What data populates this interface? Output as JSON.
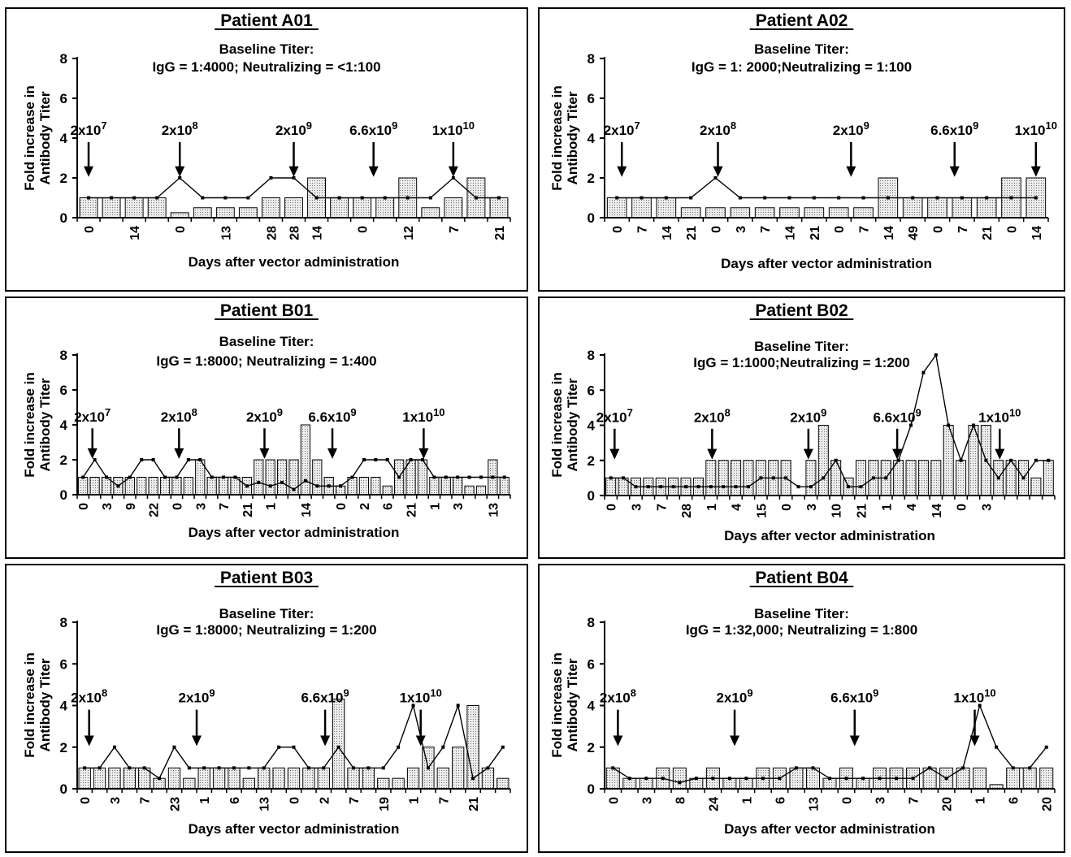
{
  "chart_data": [
    {
      "type": "bar",
      "title": "Patient A01",
      "subtitle": "Baseline Titer:",
      "subtitle2": "IgG = 1:4000; Neutralizing = <1:100",
      "ylabel": "Fold increase in Antibody Titer",
      "xlabel": "Days after vector administration",
      "ylim": [
        0,
        8
      ],
      "yticks": [
        0,
        2,
        4,
        6,
        8
      ],
      "tick_labels": [
        {
          "i": 0,
          "label": "0"
        },
        {
          "i": 2,
          "label": "14"
        },
        {
          "i": 4,
          "label": "0"
        },
        {
          "i": 6,
          "label": "13"
        },
        {
          "i": 8,
          "label": "28"
        },
        {
          "i": 9,
          "label": "28"
        },
        {
          "i": 10,
          "label": "14"
        },
        {
          "i": 12,
          "label": "0"
        },
        {
          "i": 14,
          "label": "12"
        },
        {
          "i": 16,
          "label": "7"
        },
        {
          "i": 18,
          "label": "21"
        }
      ],
      "bars": [
        1,
        1,
        1,
        1,
        0.25,
        0.5,
        0.5,
        0.5,
        1,
        1,
        2,
        1,
        1,
        1,
        2,
        0.5,
        1,
        2,
        1
      ],
      "line": [
        1,
        1,
        1,
        1,
        2,
        1,
        1,
        1,
        2,
        2,
        1,
        1,
        1,
        1,
        1,
        1,
        2,
        1,
        1
      ],
      "doses": [
        {
          "at": 0.5,
          "base": "2x10",
          "exp": "7"
        },
        {
          "at": 4.5,
          "base": "2x10",
          "exp": "8"
        },
        {
          "at": 9.5,
          "base": "2x10",
          "exp": "9"
        },
        {
          "at": 13.0,
          "base": "6.6x10",
          "exp": "9"
        },
        {
          "at": 16.5,
          "base": "1x10",
          "exp": "10"
        }
      ]
    },
    {
      "type": "bar",
      "title": "Patient A02",
      "subtitle": "Baseline Titer:",
      "subtitle2": "IgG = 1: 2000;Neutralizing = 1:100",
      "ylabel": "Fold increase in Antibody Titer",
      "xlabel": "Days after vector administration",
      "ylim": [
        0,
        8
      ],
      "yticks": [
        0,
        2,
        4,
        6,
        8
      ],
      "tick_labels": [
        {
          "i": 0,
          "label": "0"
        },
        {
          "i": 1,
          "label": "7"
        },
        {
          "i": 2,
          "label": "14"
        },
        {
          "i": 3,
          "label": "21"
        },
        {
          "i": 4,
          "label": "0"
        },
        {
          "i": 5,
          "label": "3"
        },
        {
          "i": 6,
          "label": "7"
        },
        {
          "i": 7,
          "label": "14"
        },
        {
          "i": 8,
          "label": "21"
        },
        {
          "i": 9,
          "label": "0"
        },
        {
          "i": 10,
          "label": "7"
        },
        {
          "i": 11,
          "label": "14"
        },
        {
          "i": 12,
          "label": "49"
        },
        {
          "i": 13,
          "label": "0"
        },
        {
          "i": 14,
          "label": "7"
        },
        {
          "i": 15,
          "label": "21"
        },
        {
          "i": 16,
          "label": "0"
        },
        {
          "i": 17,
          "label": "14"
        }
      ],
      "bars": [
        1,
        1,
        1,
        0.5,
        0.5,
        0.5,
        0.5,
        0.5,
        0.5,
        0.5,
        0.5,
        2,
        1,
        1,
        1,
        1,
        2,
        2
      ],
      "line": [
        1,
        1,
        1,
        1,
        2,
        1,
        1,
        1,
        1,
        1,
        1,
        1,
        1,
        1,
        1,
        1,
        1,
        1
      ],
      "doses": [
        {
          "at": 0.7,
          "base": "2x10",
          "exp": "7"
        },
        {
          "at": 4.6,
          "base": "2x10",
          "exp": "8"
        },
        {
          "at": 10.0,
          "base": "2x10",
          "exp": "9"
        },
        {
          "at": 14.2,
          "base": "6.6x10",
          "exp": "9"
        },
        {
          "at": 17.5,
          "base": "1x10",
          "exp": "10"
        }
      ]
    },
    {
      "type": "bar",
      "title": "Patient B01",
      "subtitle": "Baseline Titer:",
      "subtitle2": "IgG = 1:8000; Neutralizing = 1:400",
      "ylabel": "Fold increase in Antibody Titer",
      "xlabel": "Days after vector administration",
      "ylim": [
        0,
        8
      ],
      "yticks": [
        0,
        2,
        4,
        6,
        8
      ],
      "tick_labels": [
        {
          "i": 0,
          "label": "0"
        },
        {
          "i": 2,
          "label": "3"
        },
        {
          "i": 4,
          "label": "9"
        },
        {
          "i": 6,
          "label": "22"
        },
        {
          "i": 8,
          "label": "0"
        },
        {
          "i": 10,
          "label": "3"
        },
        {
          "i": 12,
          "label": "7"
        },
        {
          "i": 14,
          "label": "21"
        },
        {
          "i": 16,
          "label": "1"
        },
        {
          "i": 19,
          "label": "14"
        },
        {
          "i": 22,
          "label": "0"
        },
        {
          "i": 24,
          "label": "2"
        },
        {
          "i": 26,
          "label": "6"
        },
        {
          "i": 28,
          "label": "21"
        },
        {
          "i": 30,
          "label": "1"
        },
        {
          "i": 32,
          "label": "3"
        },
        {
          "i": 35,
          "label": "13"
        }
      ],
      "bars": [
        1,
        1,
        1,
        1,
        1,
        1,
        1,
        1,
        1,
        1,
        2,
        1,
        1,
        1,
        1,
        2,
        2,
        2,
        2,
        4,
        2,
        1,
        0.5,
        1,
        1,
        1,
        0.5,
        2,
        2,
        2,
        1,
        1,
        1,
        0.5,
        0.5,
        2,
        1
      ],
      "line": [
        1,
        2,
        1,
        0.5,
        1,
        2,
        2,
        1,
        1,
        2,
        2,
        1,
        1,
        1,
        0.5,
        0.7,
        0.5,
        0.7,
        0.3,
        0.8,
        0.5,
        0.5,
        0.5,
        1,
        2,
        2,
        2,
        1,
        2,
        2,
        1,
        1,
        1,
        1,
        1,
        1,
        1
      ],
      "doses": [
        {
          "at": 1.3,
          "base": "2x10",
          "exp": "7"
        },
        {
          "at": 8.7,
          "base": "2x10",
          "exp": "8"
        },
        {
          "at": 16.0,
          "base": "2x10",
          "exp": "9"
        },
        {
          "at": 21.8,
          "base": "6.6x10",
          "exp": "9"
        },
        {
          "at": 29.6,
          "base": "1x10",
          "exp": "10"
        }
      ]
    },
    {
      "type": "bar",
      "title": "Patient B02",
      "subtitle": "Baseline Titer:",
      "subtitle2": "IgG = 1:1000;Neutralizing = 1:200",
      "ylabel": "Fold increase in Antibody Titer",
      "xlabel": "Days after vector administration",
      "ylim": [
        0,
        8
      ],
      "yticks": [
        0,
        2,
        4,
        6,
        8
      ],
      "tick_labels": [
        {
          "i": 0,
          "label": "0"
        },
        {
          "i": 2,
          "label": "3"
        },
        {
          "i": 4,
          "label": "7"
        },
        {
          "i": 6,
          "label": "28"
        },
        {
          "i": 8,
          "label": "1"
        },
        {
          "i": 10,
          "label": "4"
        },
        {
          "i": 12,
          "label": "15"
        },
        {
          "i": 14,
          "label": "0"
        },
        {
          "i": 16,
          "label": "3"
        },
        {
          "i": 18,
          "label": "10"
        },
        {
          "i": 20,
          "label": "21"
        },
        {
          "i": 22,
          "label": "1"
        },
        {
          "i": 24,
          "label": "4"
        },
        {
          "i": 26,
          "label": "14"
        },
        {
          "i": 28,
          "label": "0"
        },
        {
          "i": 30,
          "label": "3"
        }
      ],
      "bars": [
        1,
        1,
        1,
        1,
        1,
        1,
        1,
        1,
        2,
        2,
        2,
        2,
        2,
        2,
        2,
        0,
        2,
        4,
        2,
        1,
        2,
        2,
        2,
        2,
        2,
        2,
        2,
        4,
        2,
        4,
        4,
        2,
        2,
        2,
        1,
        2
      ],
      "line": [
        1,
        1,
        0.5,
        0.5,
        0.5,
        0.5,
        0.5,
        0.5,
        0.5,
        0.5,
        0.5,
        0.5,
        1,
        1,
        1,
        0.5,
        0.5,
        1,
        2,
        0.5,
        0.5,
        1,
        1,
        2,
        4,
        7,
        8,
        4,
        2,
        4,
        2,
        1,
        2,
        1,
        2,
        2
      ],
      "doses": [
        {
          "at": 0.8,
          "base": "2x10",
          "exp": "7"
        },
        {
          "at": 8.6,
          "base": "2x10",
          "exp": "8"
        },
        {
          "at": 16.3,
          "base": "2x10",
          "exp": "9"
        },
        {
          "at": 23.4,
          "base": "6.6x10",
          "exp": "9"
        },
        {
          "at": 31.6,
          "base": "1x10",
          "exp": "10"
        }
      ]
    },
    {
      "type": "bar",
      "title": "Patient B03",
      "subtitle": "Baseline Titer:",
      "subtitle2": "IgG = 1:8000; Neutralizing = 1:200",
      "ylabel": "Fold increase in Antibody Titer",
      "xlabel": "Days after vector administration",
      "ylim": [
        0,
        8
      ],
      "yticks": [
        0,
        2,
        4,
        6,
        8
      ],
      "tick_labels": [
        {
          "i": 0,
          "label": "0"
        },
        {
          "i": 2,
          "label": "3"
        },
        {
          "i": 4,
          "label": "7"
        },
        {
          "i": 6,
          "label": "23"
        },
        {
          "i": 8,
          "label": "1"
        },
        {
          "i": 10,
          "label": "6"
        },
        {
          "i": 12,
          "label": "13"
        },
        {
          "i": 14,
          "label": "0"
        },
        {
          "i": 16,
          "label": "2"
        },
        {
          "i": 18,
          "label": "7"
        },
        {
          "i": 20,
          "label": "19"
        },
        {
          "i": 22,
          "label": "1"
        },
        {
          "i": 24,
          "label": "7"
        },
        {
          "i": 26,
          "label": "21"
        }
      ],
      "bars": [
        1,
        1,
        1,
        1,
        1,
        0.5,
        1,
        0.5,
        1,
        1,
        1,
        0.5,
        1,
        1,
        1,
        1,
        1,
        4.3,
        1,
        1,
        0.5,
        0.5,
        1,
        2,
        1,
        2,
        4,
        1,
        0.5
      ],
      "line": [
        1,
        1,
        2,
        1,
        1,
        0.5,
        2,
        1,
        1,
        1,
        1,
        1,
        1,
        2,
        2,
        1,
        1,
        2,
        1,
        1,
        1,
        2,
        4,
        1,
        2,
        4,
        0.5,
        1,
        2
      ],
      "doses": [
        {
          "at": 0.8,
          "base": "2x10",
          "exp": "8"
        },
        {
          "at": 8.0,
          "base": "2x10",
          "exp": "9"
        },
        {
          "at": 16.6,
          "base": "6.6x10",
          "exp": "9"
        },
        {
          "at": 23.0,
          "base": "1x10",
          "exp": "10"
        }
      ]
    },
    {
      "type": "bar",
      "title": "Patient B04",
      "subtitle": "Baseline Titer:",
      "subtitle2": "IgG = 1:32,000; Neutralizing = 1:800",
      "ylabel": "Fold increase in Antibody Titer",
      "xlabel": "Days after vector administration",
      "ylim": [
        0,
        8
      ],
      "yticks": [
        0,
        2,
        4,
        6,
        8
      ],
      "tick_labels": [
        {
          "i": 0,
          "label": "0"
        },
        {
          "i": 2,
          "label": "3"
        },
        {
          "i": 4,
          "label": "8"
        },
        {
          "i": 6,
          "label": "24"
        },
        {
          "i": 8,
          "label": "1"
        },
        {
          "i": 10,
          "label": "6"
        },
        {
          "i": 12,
          "label": "13"
        },
        {
          "i": 14,
          "label": "0"
        },
        {
          "i": 16,
          "label": "3"
        },
        {
          "i": 18,
          "label": "7"
        },
        {
          "i": 20,
          "label": "20"
        },
        {
          "i": 22,
          "label": "1"
        },
        {
          "i": 24,
          "label": "6"
        },
        {
          "i": 26,
          "label": "20"
        }
      ],
      "bars": [
        1,
        0.5,
        0.5,
        1,
        1,
        0.5,
        1,
        0.5,
        0.5,
        1,
        1,
        1,
        1,
        0.5,
        1,
        0.5,
        1,
        1,
        1,
        1,
        1,
        1,
        1,
        0.2,
        1,
        1,
        1
      ],
      "line": [
        1,
        0.5,
        0.5,
        0.5,
        0.3,
        0.5,
        0.5,
        0.5,
        0.5,
        0.5,
        0.5,
        1,
        1,
        0.5,
        0.5,
        0.5,
        0.5,
        0.5,
        0.5,
        1,
        0.5,
        1,
        4,
        2,
        1,
        1,
        2
      ],
      "doses": [
        {
          "at": 0.8,
          "base": "2x10",
          "exp": "8"
        },
        {
          "at": 7.8,
          "base": "2x10",
          "exp": "9"
        },
        {
          "at": 15.0,
          "base": "6.6x10",
          "exp": "9"
        },
        {
          "at": 22.2,
          "base": "1x10",
          "exp": "10"
        }
      ]
    }
  ]
}
